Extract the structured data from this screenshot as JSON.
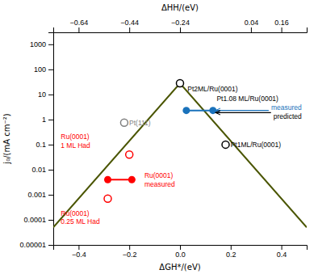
{
  "chart_data": {
    "type": "line",
    "x_label": "ΔGH*/(eV)",
    "y_label": "j₀/(mA cm⁻²)",
    "x2_label": "ΔHH/(eV)",
    "log": "y",
    "xlim": [
      -0.5,
      0.5
    ],
    "xticks": [
      {
        "value": -0.4,
        "label": "−0.4"
      },
      {
        "value": -0.2,
        "label": "−0.2"
      },
      {
        "value": 0,
        "label": "0.0"
      },
      {
        "value": 0.2,
        "label": "0.2"
      },
      {
        "value": 0.4,
        "label": "0.4"
      }
    ],
    "x2lim": [
      -0.74,
      0.26
    ],
    "x2ticks": [
      {
        "value": -0.64,
        "label": "−0.64"
      },
      {
        "value": -0.44,
        "label": "−0.44"
      },
      {
        "value": -0.24,
        "label": "−0.24"
      },
      0.04,
      0.16
    ],
    "ylim": [
      1e-05,
      3000
    ],
    "yticks": [
      1e-05,
      0.0001,
      0.001,
      0.01,
      0.1,
      1,
      10,
      100,
      1000
    ],
    "series": [
      {
        "type": "line",
        "color": "#4a5500",
        "x": [
          -0.5,
          0.0,
          0.5
        ],
        "values": [
          5e-05,
          28.0,
          5e-05
        ]
      },
      {
        "type": "scatter",
        "marker": "circle-open",
        "color": "black",
        "x": [
          0.0
        ],
        "values": [
          28.0
        ]
      },
      {
        "type": "scatter",
        "marker": "circle-open",
        "color": "black",
        "x": [
          0.18
        ],
        "values": [
          0.1
        ]
      },
      {
        "type": "scatter",
        "marker": "circle-open",
        "color": "gray",
        "x": [
          -0.22
        ],
        "values": [
          0.75
        ]
      },
      {
        "type": "scatter",
        "marker": "circle-open",
        "color": "red",
        "x": [
          -0.2
        ],
        "values": [
          0.04
        ]
      },
      {
        "type": "scatter",
        "marker": "circle-open",
        "color": "red",
        "x": [
          -0.285
        ],
        "values": [
          0.0007
        ]
      },
      {
        "type": "line",
        "marker": "circle",
        "color": "red",
        "x": [
          -0.285,
          -0.19
        ],
        "values": [
          0.004,
          0.004
        ]
      },
      {
        "type": "line",
        "marker": "circle",
        "color": "#1a72bb",
        "x": [
          0.025,
          0.13
        ],
        "values": [
          2.3,
          2.3
        ]
      }
    ],
    "annotations": [
      {
        "text": [
          "Pt2ML/Ru(0001)"
        ],
        "x": 0.02,
        "y": 22,
        "color": "black"
      },
      {
        "text": [
          "Pt1.08 ML/Ru(0001)"
        ],
        "x": 0.135,
        "y": 4.5,
        "color": "black"
      },
      {
        "text": [
          "Pt1ML/Ru(0001)"
        ],
        "x": 0.19,
        "y": 0.1,
        "color": "black"
      },
      {
        "text": [
          "Pt(111)"
        ],
        "x": -0.21,
        "y": 0.75,
        "color": "gray"
      },
      {
        "text": [
          "Ru(0001)",
          "1 ML Had"
        ],
        "x": -0.48,
        "y": 0.06,
        "color": "red"
      },
      {
        "text": [
          "Ru(0001)",
          "measured"
        ],
        "x": -0.15,
        "y": 0.004,
        "color": "red"
      },
      {
        "text": [
          "Ru(0001)",
          "0.25 ML Had"
        ],
        "x": -0.48,
        "y": 0.00025,
        "color": "red"
      },
      {
        "text": [
          "measured"
        ],
        "x": 0.48,
        "y": 2.3,
        "arrow_x": 0.14,
        "arrow_y": 2.3,
        "color": "#1a72bb"
      },
      {
        "text": [
          "predicted"
        ],
        "x": 0.48,
        "y": 1.886,
        "arrow_x": 0.14,
        "arrow_y": 1.886,
        "color": "black"
      }
    ]
  }
}
